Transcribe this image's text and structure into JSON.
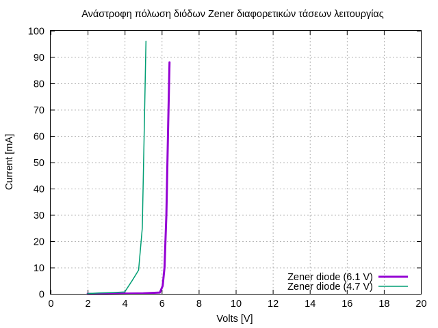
{
  "chart_data": {
    "type": "line",
    "title": "Ανάστροφη πόλωση διόδων Zener διαφορετικών τάσεων λειτουργίας",
    "xlabel": "Volts [V]",
    "ylabel": "Current [mA]",
    "xlim": [
      0,
      20
    ],
    "ylim": [
      0,
      100
    ],
    "xticks": [
      0,
      2,
      4,
      6,
      8,
      10,
      12,
      14,
      16,
      18,
      20
    ],
    "yticks": [
      0,
      10,
      20,
      30,
      40,
      50,
      60,
      70,
      80,
      90,
      100
    ],
    "grid": true,
    "legend_position": "bottom-right",
    "series": [
      {
        "name": "Zener diode (6.1 V)",
        "color": "#9400d3",
        "line_width": "thick",
        "x": [
          2.0,
          3.0,
          4.0,
          5.0,
          5.9,
          6.05,
          6.15,
          6.25,
          6.35,
          6.42
        ],
        "y": [
          0.0,
          0.0,
          0.1,
          0.2,
          0.5,
          3.0,
          10.0,
          30.0,
          65.0,
          88.0
        ]
      },
      {
        "name": "Zener diode (4.7 V)",
        "color": "#009e73",
        "line_width": "normal",
        "x": [
          2.0,
          2.6,
          3.4,
          4.0,
          4.4,
          4.75,
          4.95,
          5.05,
          5.15
        ],
        "y": [
          0.1,
          0.3,
          0.5,
          0.7,
          5.0,
          9.0,
          25.0,
          60.0,
          96.0
        ]
      }
    ]
  }
}
